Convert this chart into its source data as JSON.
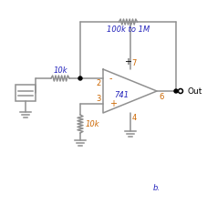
{
  "bg_color": "#ffffff",
  "line_color": "#909090",
  "text_blue": "#2222bb",
  "text_orange": "#cc6600",
  "text_black": "#000000",
  "fig_width": 2.27,
  "fig_height": 2.24,
  "dpi": 100,
  "label_10k_top": "10k",
  "label_100k": "100k to 1M",
  "label_10k_bot": "10k",
  "label_741": "741",
  "label_out": "Out",
  "label_b": "b.",
  "pin2": "2",
  "pin3": "3",
  "pin4": "4",
  "pin6": "6",
  "pin7": "7",
  "plus_top": "+",
  "minus": "-",
  "plus_bot": "+"
}
